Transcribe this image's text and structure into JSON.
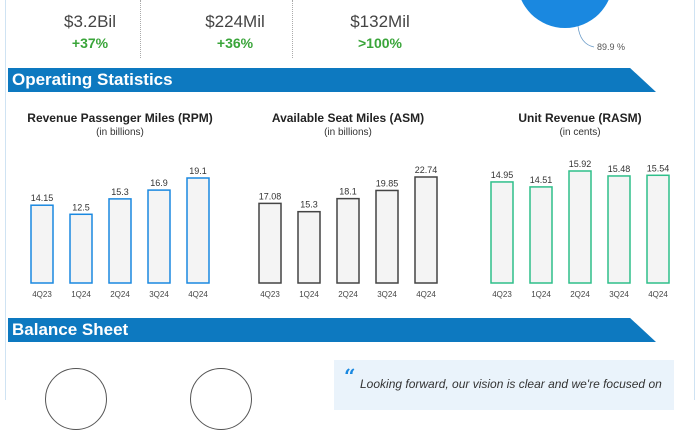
{
  "kpis": [
    {
      "value": "$3.2Bil",
      "change": "+37%"
    },
    {
      "value": "$224Mil",
      "change": "+36%"
    },
    {
      "value": "$132Mil",
      "change": ">100%"
    }
  ],
  "pie": {
    "label": "89.9 %",
    "color": "#1a88e0"
  },
  "sections": {
    "operating": "Operating Statistics",
    "balance": "Balance Sheet"
  },
  "quote": {
    "mark": "“",
    "text": "Looking forward, our vision is clear and we're focused on"
  },
  "colors": {
    "banner": "#0d79c0",
    "positive": "#3aa53a"
  },
  "chart_data": [
    {
      "type": "bar",
      "title": "Revenue Passenger Miles (RPM)",
      "subtitle": "(in billions)",
      "categories": [
        "4Q23",
        "1Q24",
        "2Q24",
        "3Q24",
        "4Q24"
      ],
      "values": [
        14.15,
        12.5,
        15.3,
        16.9,
        19.1
      ],
      "labels": [
        "14.15",
        "12.5",
        "15.3",
        "16.9",
        "19.1"
      ],
      "ylim": [
        0,
        19.1
      ],
      "color": "#1a88e0"
    },
    {
      "type": "bar",
      "title": "Available Seat Miles (ASM)",
      "subtitle": "(in billions)",
      "categories": [
        "4Q23",
        "1Q24",
        "2Q24",
        "3Q24",
        "4Q24"
      ],
      "values": [
        17.08,
        15.3,
        18.1,
        19.85,
        22.74
      ],
      "labels": [
        "17.08",
        "15.3",
        "18.1",
        "19.85",
        "22.74"
      ],
      "ylim": [
        0,
        22.74
      ],
      "color": "#444444"
    },
    {
      "type": "bar",
      "title": "Unit Revenue (RASM)",
      "subtitle": "(in cents)",
      "categories": [
        "4Q23",
        "1Q24",
        "2Q24",
        "3Q24",
        "4Q24"
      ],
      "values": [
        14.95,
        14.51,
        15.92,
        15.48,
        15.54
      ],
      "labels": [
        "14.95",
        "14.51",
        "15.92",
        "15.48",
        "15.54"
      ],
      "ylim": [
        6,
        15.92
      ],
      "color": "#2fbf8a"
    }
  ]
}
